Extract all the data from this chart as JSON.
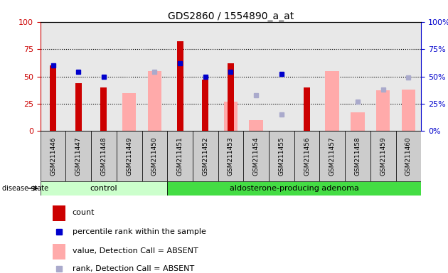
{
  "title": "GDS2860 / 1554890_a_at",
  "samples": [
    "GSM211446",
    "GSM211447",
    "GSM211448",
    "GSM211449",
    "GSM211450",
    "GSM211451",
    "GSM211452",
    "GSM211453",
    "GSM211454",
    "GSM211455",
    "GSM211456",
    "GSM211457",
    "GSM211458",
    "GSM211459",
    "GSM211460"
  ],
  "count": [
    60,
    44,
    40,
    null,
    null,
    82,
    47,
    62,
    null,
    null,
    40,
    null,
    null,
    null,
    null
  ],
  "percentile_rank": [
    60,
    54,
    50,
    null,
    null,
    62,
    50,
    54,
    null,
    52,
    null,
    null,
    null,
    null,
    null
  ],
  "value_absent": [
    null,
    null,
    null,
    35,
    55,
    null,
    null,
    27,
    10,
    null,
    null,
    55,
    17,
    37,
    38
  ],
  "rank_absent": [
    null,
    null,
    null,
    null,
    54,
    null,
    null,
    null,
    33,
    15,
    null,
    null,
    27,
    38,
    49
  ],
  "n_control": 5,
  "n_adenoma": 10,
  "control_label": "control",
  "adenoma_label": "aldosterone-producing adenoma",
  "disease_state_label": "disease state",
  "legend_count": "count",
  "legend_percentile": "percentile rank within the sample",
  "legend_value_absent": "value, Detection Call = ABSENT",
  "legend_rank_absent": "rank, Detection Call = ABSENT",
  "ylim": [
    0,
    100
  ],
  "yticks": [
    0,
    25,
    50,
    75,
    100
  ],
  "color_count": "#cc0000",
  "color_percentile": "#0000cc",
  "color_value_absent": "#ffaaaa",
  "color_rank_absent": "#aaaacc",
  "color_control_bg": "#ccffcc",
  "color_adenoma_bg": "#44dd44",
  "color_axis_left": "#cc0000",
  "color_axis_right": "#0000cc",
  "plot_bg": "#e8e8e8"
}
